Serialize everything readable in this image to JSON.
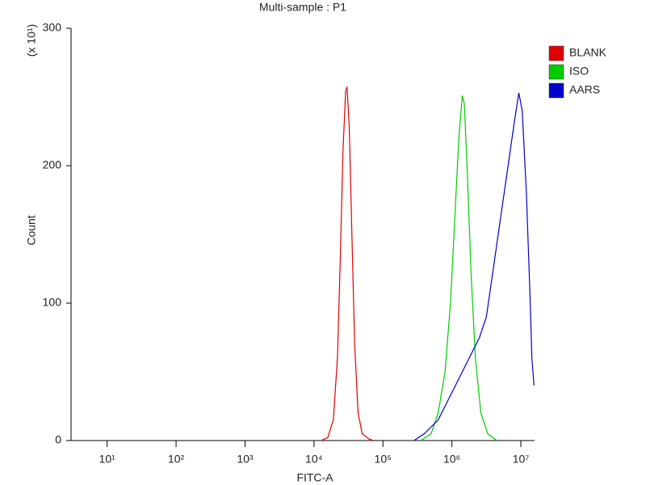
{
  "chart_data": {
    "type": "line",
    "title": "Multi-sample : P1",
    "x_label": "FITC-A",
    "y_label": "Count",
    "y_unit_label": "(x 10¹)",
    "xscale": "log",
    "xlim": [
      3,
      15800000
    ],
    "ylim": [
      0,
      300
    ],
    "xticks": [
      {
        "value": 10,
        "label": "10¹"
      },
      {
        "value": 100,
        "label": "10²"
      },
      {
        "value": 1000,
        "label": "10³"
      },
      {
        "value": 10000,
        "label": "10⁴"
      },
      {
        "value": 100000,
        "label": "10⁵"
      },
      {
        "value": 1000000,
        "label": "10⁶"
      },
      {
        "value": 10000000,
        "label": "10⁷"
      }
    ],
    "yticks": [
      0,
      100,
      200,
      300
    ],
    "legend": "right",
    "series": [
      {
        "name": "BLANK",
        "color": "#e00000",
        "x": [
          12600,
          15800,
          19100,
          21900,
          24000,
          26300,
          28800,
          30200,
          32400,
          35500,
          38900,
          43700,
          50100,
          63100,
          72400
        ],
        "values": [
          0,
          2,
          15,
          60,
          130,
          210,
          255,
          257,
          230,
          150,
          70,
          20,
          5,
          1,
          0
        ]
      },
      {
        "name": "ISO",
        "color": "#00cc00",
        "x": [
          355000,
          501000,
          631000,
          794000,
          955000,
          1122000,
          1259000,
          1413000,
          1514000,
          1660000,
          1905000,
          2188000,
          2630000,
          3311000,
          4467000
        ],
        "values": [
          0,
          5,
          20,
          50,
          100,
          170,
          220,
          251,
          245,
          200,
          120,
          60,
          20,
          5,
          0
        ]
      },
      {
        "name": "AARS",
        "color": "#0000cc",
        "x": [
          282000,
          398000,
          631000,
          891000,
          1259000,
          1778000,
          2512000,
          3162000,
          3981000,
          5012000,
          6310000,
          7943000,
          9333000,
          10470000,
          12020000,
          13490000,
          14450000,
          15490000
        ],
        "values": [
          0,
          5,
          15,
          30,
          45,
          60,
          75,
          90,
          125,
          160,
          195,
          230,
          253,
          240,
          180,
          110,
          60,
          40
        ]
      }
    ]
  }
}
